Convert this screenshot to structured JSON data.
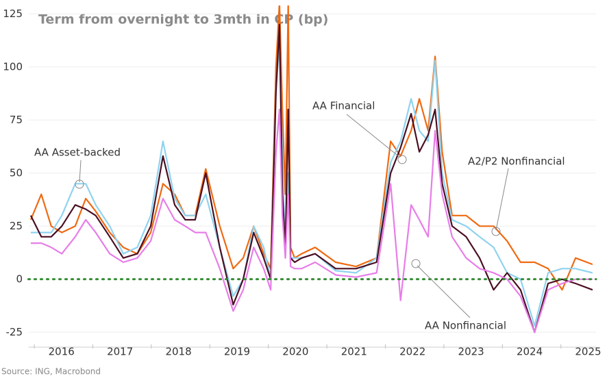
{
  "chart_data": {
    "type": "line",
    "title": "Term from overnight to 3mth in CP (bp)",
    "source": "Source: ING, Macrobond",
    "x": [
      2015.94,
      2016.12,
      2016.29,
      2016.47,
      2016.7,
      2016.88,
      2017.05,
      2017.29,
      2017.52,
      2017.76,
      2017.99,
      2018.2,
      2018.4,
      2018.58,
      2018.75,
      2018.93,
      2019.17,
      2019.4,
      2019.57,
      2019.75,
      2019.92,
      2020.04,
      2020.13,
      2020.19,
      2020.24,
      2020.29,
      2020.34,
      2020.38,
      2020.45,
      2020.57,
      2020.8,
      2021.15,
      2021.5,
      2021.85,
      2022.09,
      2022.26,
      2022.44,
      2022.58,
      2022.73,
      2022.85,
      2022.97,
      2023.14,
      2023.38,
      2023.61,
      2023.85,
      2024.08,
      2024.31,
      2024.55,
      2024.78,
      2025.02,
      2025.25,
      2025.54
    ],
    "series": [
      {
        "name": "A2/P2 Nonfinancial",
        "color": "#ee6a12",
        "values": [
          28,
          40,
          25,
          22,
          25,
          38,
          32,
          22,
          15,
          12,
          22,
          45,
          40,
          30,
          30,
          52,
          25,
          5,
          10,
          25,
          12,
          5,
          100,
          130,
          80,
          40,
          130,
          15,
          10,
          12,
          15,
          8,
          6,
          10,
          65,
          58,
          70,
          85,
          70,
          105,
          60,
          30,
          30,
          25,
          25,
          18,
          8,
          8,
          5,
          -5,
          10,
          7
        ]
      },
      {
        "name": "AA Asset-backed",
        "color": "#8fd3ef",
        "values": [
          22,
          22,
          22,
          30,
          45,
          45,
          35,
          25,
          12,
          15,
          30,
          65,
          38,
          30,
          30,
          40,
          15,
          -8,
          0,
          25,
          15,
          0,
          90,
          110,
          60,
          10,
          50,
          10,
          10,
          10,
          12,
          4,
          3,
          10,
          55,
          65,
          85,
          70,
          65,
          103,
          50,
          28,
          25,
          20,
          15,
          3,
          0,
          -22,
          3,
          5,
          5,
          3
        ]
      },
      {
        "name": "AA Financial",
        "color": "#4a0f22",
        "values": [
          30,
          20,
          20,
          25,
          35,
          33,
          30,
          20,
          10,
          12,
          25,
          58,
          35,
          28,
          28,
          50,
          15,
          -12,
          0,
          22,
          10,
          0,
          88,
          120,
          40,
          15,
          80,
          10,
          8,
          10,
          12,
          5,
          5,
          8,
          50,
          62,
          78,
          60,
          68,
          80,
          45,
          25,
          20,
          10,
          -5,
          3,
          -5,
          -25,
          -2,
          0,
          -2,
          -5
        ]
      },
      {
        "name": "AA Nonfinancial",
        "color": "#e77de8",
        "values": [
          17,
          17,
          15,
          12,
          20,
          28,
          22,
          12,
          8,
          10,
          18,
          38,
          28,
          25,
          22,
          22,
          5,
          -15,
          -5,
          15,
          5,
          -5,
          60,
          80,
          30,
          10,
          40,
          6,
          5,
          5,
          8,
          2,
          1,
          3,
          45,
          -10,
          35,
          28,
          20,
          70,
          40,
          20,
          10,
          5,
          3,
          0,
          -8,
          -25,
          -5,
          -2,
          0,
          0
        ]
      }
    ],
    "xlim": [
      2015.9,
      2025.6
    ],
    "xticks": [
      2016,
      2017,
      2018,
      2019,
      2020,
      2021,
      2022,
      2023,
      2024,
      2025
    ],
    "ylim": [
      -32,
      128
    ],
    "yticks": [
      125,
      100,
      75,
      50,
      25,
      0,
      -25
    ],
    "grid": true,
    "zero_line": {
      "value": 0,
      "color": "#2e8b2e"
    }
  }
}
